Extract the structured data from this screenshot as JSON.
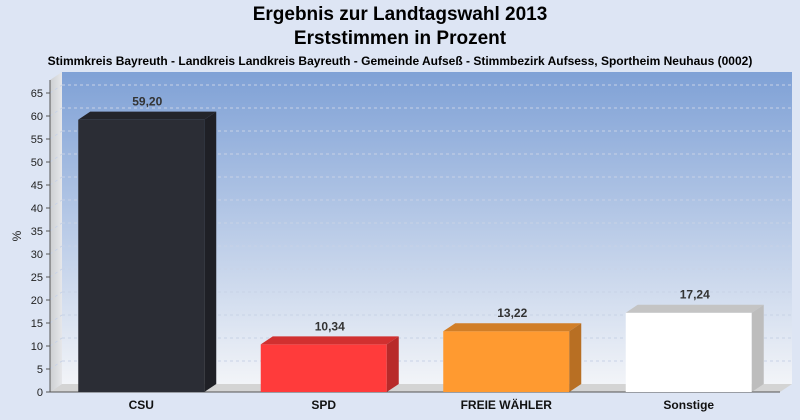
{
  "chart_data": {
    "type": "bar",
    "title": "Ergebnis zur Landtagswahl 2013",
    "subtitle": "Erststimmen in Prozent",
    "description": "Stimmkreis Bayreuth - Landkreis Landkreis Bayreuth - Gemeinde Aufseß - Stimmbezirk Aufsess, Sportheim Neuhaus (0002)",
    "ylabel": "%",
    "ylim": [
      0,
      68
    ],
    "yticks": [
      0,
      5,
      10,
      15,
      20,
      25,
      30,
      35,
      40,
      45,
      50,
      55,
      60,
      65
    ],
    "categories": [
      "CSU",
      "SPD",
      "FREIE WÄHLER",
      "Sonstige"
    ],
    "values": [
      59.2,
      10.34,
      13.22,
      17.24
    ],
    "value_labels": [
      "59,20",
      "10,34",
      "13,22",
      "17,24"
    ],
    "colors": [
      "#2b2d35",
      "#ff3b3b",
      "#ff9a30",
      "#ffffff"
    ],
    "grid": true
  }
}
